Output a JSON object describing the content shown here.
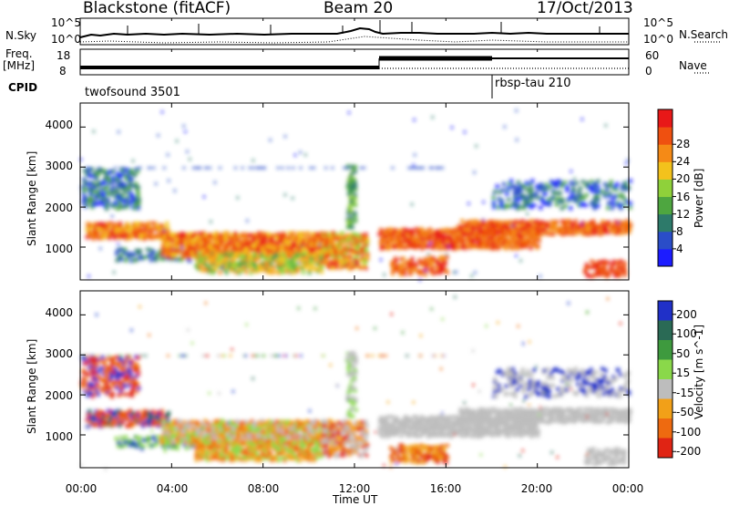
{
  "header": {
    "station": "Blackstone (fitACF)",
    "beam": "Beam 20",
    "date": "17/Oct/2013"
  },
  "panels": {
    "nsky_label": "N.Sky",
    "nsky_ticks": [
      "10^5",
      "10^0"
    ],
    "nsearch_label": "N.Search",
    "nsearch_ticks": [
      "10^5",
      "10^0"
    ],
    "freq_label_line1": "Freq.",
    "freq_label_line2": "[MHz]",
    "freq_ticks": [
      "18",
      "8"
    ],
    "nave_label": "Nave",
    "nave_ticks": [
      "60",
      "0"
    ],
    "cpid_label": "CPID",
    "cpid_1": "twofsound 3501",
    "cpid_2": "rbsp-tau 210"
  },
  "chart_data": [
    {
      "type": "heatmap",
      "title": "",
      "xlabel": "Time UT",
      "ylabel": "Slant Range [km]",
      "x_ticks": [
        "00:00",
        "04:00",
        "08:00",
        "12:00",
        "16:00",
        "20:00",
        "00:00"
      ],
      "y_ticks": [
        1000,
        2000,
        3000,
        4000
      ],
      "ylim": [
        180,
        4600
      ],
      "colorbar": {
        "label": "Power [dB]",
        "ticks": [
          "4",
          "8",
          "12",
          "16",
          "20",
          "24",
          "28"
        ],
        "colors": [
          "#1c1cff",
          "#2a4dc8",
          "#2d7a6a",
          "#4ea640",
          "#8fd13a",
          "#f3c21c",
          "#f58a16",
          "#ef5010",
          "#e81818"
        ]
      }
    },
    {
      "type": "heatmap",
      "title": "",
      "xlabel": "Time UT",
      "ylabel": "Slant Range [km]",
      "x_ticks": [
        "00:00",
        "04:00",
        "08:00",
        "12:00",
        "16:00",
        "20:00",
        "00:00"
      ],
      "y_ticks": [
        1000,
        2000,
        3000,
        4000
      ],
      "ylim": [
        180,
        4600
      ],
      "colorbar": {
        "label": "Velocity [m s^-1]",
        "ticks": [
          "200",
          "100",
          "50",
          "15",
          "-15",
          "-50",
          "-100",
          "-200"
        ],
        "colors": [
          "#2030c8",
          "#2a6a55",
          "#3e9a3e",
          "#8ad84a",
          "#bdbdbd",
          "#f2a018",
          "#ee6a10",
          "#e02414"
        ]
      }
    }
  ]
}
